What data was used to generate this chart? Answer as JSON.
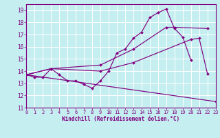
{
  "background_color": "#c5eef0",
  "line_color": "#800080",
  "grid_color": "#ffffff",
  "xlim": [
    0,
    23
  ],
  "ylim": [
    11,
    19.5
  ],
  "yticks": [
    11,
    12,
    13,
    14,
    15,
    16,
    17,
    18,
    19
  ],
  "xticks": [
    0,
    1,
    2,
    3,
    4,
    5,
    6,
    7,
    8,
    9,
    10,
    11,
    12,
    13,
    14,
    15,
    16,
    17,
    18,
    19,
    20,
    21,
    22,
    23
  ],
  "xlabel": "Windchill (Refroidissement éolien,°C)",
  "lines": [
    {
      "x": [
        0,
        1,
        2,
        3,
        4,
        5,
        6,
        7,
        8,
        9,
        10,
        11,
        12,
        13,
        14,
        15,
        16,
        17,
        18,
        19,
        20
      ],
      "y": [
        13.7,
        13.5,
        13.5,
        14.2,
        13.7,
        13.2,
        13.2,
        12.9,
        12.6,
        13.2,
        14.0,
        15.5,
        15.8,
        16.7,
        17.2,
        18.4,
        18.8,
        19.1,
        17.5,
        16.8,
        14.9
      ]
    },
    {
      "x": [
        0,
        3,
        9,
        13,
        20,
        21,
        22
      ],
      "y": [
        13.7,
        14.2,
        14.0,
        14.7,
        16.6,
        16.7,
        13.8
      ]
    },
    {
      "x": [
        0,
        23
      ],
      "y": [
        13.7,
        11.5
      ]
    },
    {
      "x": [
        0,
        3,
        9,
        13,
        17,
        18,
        22
      ],
      "y": [
        13.7,
        14.2,
        14.5,
        15.8,
        17.6,
        17.6,
        17.5
      ]
    }
  ]
}
